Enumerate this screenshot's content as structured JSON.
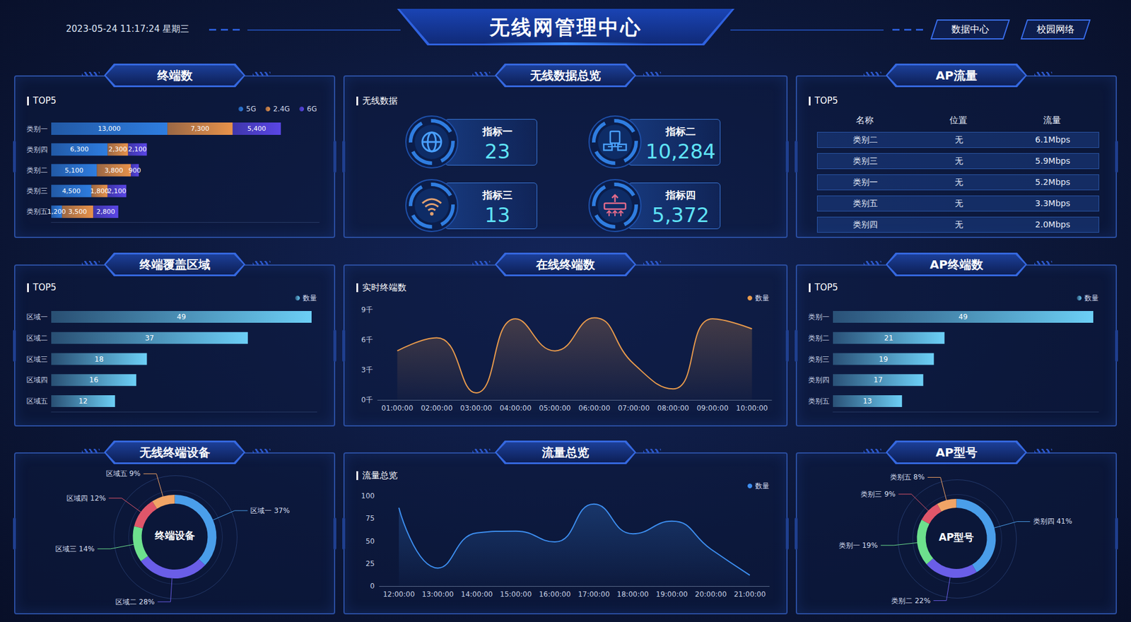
{
  "header": {
    "title": "无线网管理中心",
    "datetime": "2023-05-24 11:17:24 星期三",
    "buttons": [
      "数据中心",
      "校园网络"
    ]
  },
  "overview": {
    "title": "无线数据总览",
    "subtitle": "无线数据",
    "metrics": [
      {
        "label": "指标一",
        "value": "23"
      },
      {
        "label": "指标二",
        "value": "10,284"
      },
      {
        "label": "指标三",
        "value": "13"
      },
      {
        "label": "指标四",
        "value": "5,372"
      }
    ]
  },
  "ap_flow": {
    "title": "AP流量",
    "subtitle": "TOP5",
    "table": {
      "columns": [
        "名称",
        "位置",
        "流量"
      ],
      "rows": [
        [
          "类别二",
          "无",
          "6.1Mbps"
        ],
        [
          "类别三",
          "无",
          "5.9Mbps"
        ],
        [
          "类别一",
          "无",
          "5.2Mbps"
        ],
        [
          "类别五",
          "无",
          "3.3Mbps"
        ],
        [
          "类别四",
          "无",
          "2.0Mbps"
        ]
      ]
    }
  },
  "chart_data": [
    {
      "type": "bar",
      "title": "终端数",
      "subtitle": "TOP5",
      "orientation": "horizontal",
      "stacked": true,
      "data_labels": true,
      "legend": "upper right",
      "tick_labels": "y",
      "grid": false,
      "xlim": [
        0,
        30000
      ],
      "categories": [
        "类别一",
        "类别四",
        "类别二",
        "类别三",
        "类别五"
      ],
      "series": [
        {
          "name": "5G",
          "color": "#2e7de0",
          "values": [
            13000,
            6300,
            5100,
            4500,
            1200
          ],
          "value_labels": [
            "13,000",
            "6,300",
            "5,100",
            "4,500",
            "1,200"
          ]
        },
        {
          "name": "2.4G",
          "color": "#e8924a",
          "values": [
            7300,
            2300,
            3800,
            1800,
            3500
          ],
          "value_labels": [
            "7,300",
            "2,300",
            "3,800",
            "1,800",
            "3,500"
          ]
        },
        {
          "name": "6G",
          "color": "#5a46e6",
          "values": [
            5400,
            2100,
            900,
            2100,
            2800
          ],
          "value_labels": [
            "5,400",
            "2,100",
            "900",
            "2,100",
            "2,800"
          ]
        }
      ]
    },
    {
      "type": "bar",
      "title": "终端覆盖区域",
      "subtitle": "TOP5",
      "orientation": "horizontal",
      "data_labels": true,
      "legend": "upper right",
      "tick_labels": "y",
      "grid": false,
      "xlim": [
        0,
        50
      ],
      "categories": [
        "区域一",
        "区域二",
        "区域三",
        "区域四",
        "区域五"
      ],
      "series": [
        {
          "name": "数量",
          "color": "#6ccff6",
          "values": [
            49,
            37,
            18,
            16,
            12
          ]
        }
      ]
    },
    {
      "type": "area",
      "title": "在线终端数",
      "subtitle": "实时终端数",
      "legend": "upper right",
      "grid": false,
      "marker": "none",
      "line_style": "smooth",
      "categories": [
        "01:00:00",
        "02:00:00",
        "03:00:00",
        "04:00:00",
        "05:00:00",
        "06:00:00",
        "07:00:00",
        "08:00:00",
        "09:00:00",
        "10:00:00"
      ],
      "ylim": [
        0,
        9000
      ],
      "yticks": [
        {
          "value": 0,
          "label": "0千"
        },
        {
          "value": 3000,
          "label": "3千"
        },
        {
          "value": 6000,
          "label": "6千"
        },
        {
          "value": 9000,
          "label": "9千"
        }
      ],
      "series": [
        {
          "name": "数量",
          "color": "#e89a4c",
          "values": [
            4900,
            6200,
            700,
            8100,
            4900,
            8200,
            3600,
            1100,
            8100,
            7100
          ]
        }
      ]
    },
    {
      "type": "bar",
      "title": "AP终端数",
      "subtitle": "TOP5",
      "orientation": "horizontal",
      "data_labels": true,
      "legend": "upper right",
      "tick_labels": "y",
      "grid": false,
      "xlim": [
        0,
        50
      ],
      "categories": [
        "类别一",
        "类别二",
        "类别三",
        "类别四",
        "类别五"
      ],
      "series": [
        {
          "name": "数量",
          "color": "#6ccff6",
          "values": [
            49,
            21,
            19,
            17,
            13
          ]
        }
      ]
    },
    {
      "type": "pie",
      "title": "无线终端设备",
      "annotation": "终端设备",
      "categories": [
        "区域一",
        "区域二",
        "区域三",
        "区域四",
        "区域五"
      ],
      "values": [
        37,
        28,
        14,
        12,
        9
      ],
      "value_labels": [
        "37%",
        "28%",
        "14%",
        "12%",
        "9%"
      ],
      "colors": [
        "#4a9eea",
        "#6a5ee8",
        "#6de08d",
        "#e0566a",
        "#f0a466"
      ]
    },
    {
      "type": "area",
      "title": "流量总览",
      "subtitle": "流量总览",
      "legend": "upper right",
      "grid": false,
      "marker": "none",
      "line_style": "smooth",
      "categories": [
        "12:00:00",
        "13:00:00",
        "14:00:00",
        "15:00:00",
        "16:00:00",
        "17:00:00",
        "18:00:00",
        "19:00:00",
        "20:00:00",
        "21:00:00"
      ],
      "ylim": [
        0,
        100
      ],
      "yticks": [
        0,
        25,
        50,
        75,
        100
      ],
      "series": [
        {
          "name": "数量",
          "color": "#3d8ef0",
          "values": [
            87,
            20,
            59,
            61,
            49,
            91,
            58,
            72,
            41,
            12
          ]
        }
      ]
    },
    {
      "type": "pie",
      "title": "AP型号",
      "annotation": "AP型号",
      "categories": [
        "类别四",
        "类别二",
        "类别一",
        "类别三",
        "类别五"
      ],
      "values": [
        41,
        22,
        19,
        9,
        8
      ],
      "value_labels": [
        "41%",
        "22%",
        "19%",
        "9%",
        "8%"
      ],
      "colors": [
        "#4a9eea",
        "#6a5ee8",
        "#6de08d",
        "#e0566a",
        "#f0a466"
      ]
    }
  ]
}
